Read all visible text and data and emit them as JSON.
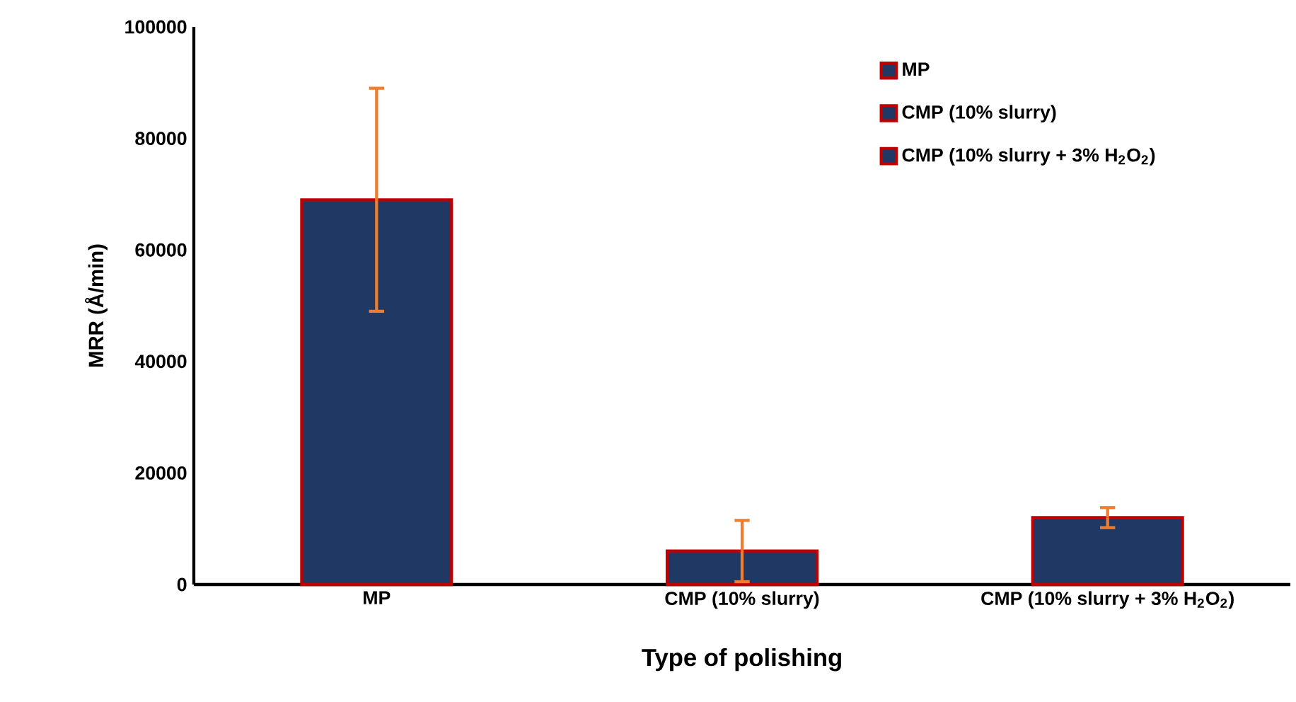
{
  "chart_data": {
    "type": "bar",
    "xlabel": "Type of polishing",
    "ylabel": "MRR (Å/min)",
    "categories": [
      "MP",
      "CMP (10% slurry)",
      "CMP (10% slurry + 3% H$_{2}$O$_{2}$)"
    ],
    "series": [
      {
        "name": "MP",
        "color": "#203864",
        "values": [
          69000,
          null,
          null
        ],
        "errors": [
          20000,
          null,
          null
        ]
      },
      {
        "name": "CMP (10% slurry)",
        "color": "#203864",
        "values": [
          null,
          6000,
          null
        ],
        "errors": [
          null,
          5500,
          null
        ]
      },
      {
        "name": "CMP (10% slurry + 3% H$_{2}$O$_{2}$)",
        "color": "#203864",
        "values": [
          null,
          null,
          12000
        ],
        "errors": [
          null,
          null,
          1800
        ]
      }
    ],
    "ylim": [
      0,
      100000
    ],
    "yticks": [
      0,
      20000,
      40000,
      60000,
      80000,
      100000
    ],
    "grid": false,
    "legend": "top right"
  }
}
